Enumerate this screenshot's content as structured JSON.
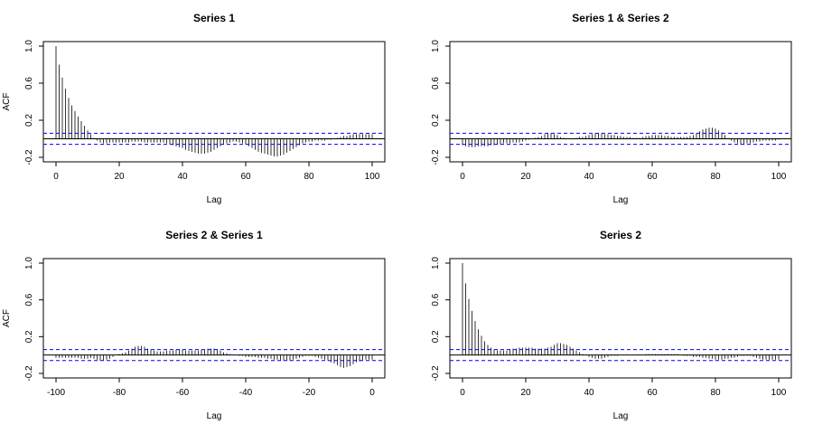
{
  "figure": {
    "title": ""
  },
  "chart_data": [
    {
      "type": "bar",
      "title": "Series 1",
      "xlabel": "Lag",
      "ylabel": "ACF",
      "xlim": [
        0,
        100
      ],
      "ylim": [
        -0.2,
        1.0
      ],
      "xticks": [
        0,
        20,
        40,
        60,
        80,
        100
      ],
      "xtick_labels": [
        "0",
        "20",
        "40",
        "60",
        "80",
        "100"
      ],
      "yticks": [
        -0.2,
        0.2,
        0.6,
        1.0
      ],
      "ytick_labels": [
        "-0.2",
        "0.2",
        "0.6",
        "1.0"
      ],
      "ci": 0.06,
      "lag_start": 0,
      "values": [
        1.0,
        0.8,
        0.66,
        0.54,
        0.44,
        0.36,
        0.3,
        0.24,
        0.19,
        0.14,
        0.09,
        0.05,
        0.01,
        -0.02,
        -0.04,
        -0.05,
        -0.05,
        -0.04,
        -0.04,
        -0.04,
        -0.04,
        -0.04,
        -0.04,
        -0.04,
        -0.03,
        -0.03,
        -0.03,
        -0.03,
        -0.04,
        -0.04,
        -0.04,
        -0.04,
        -0.04,
        -0.04,
        -0.04,
        -0.05,
        -0.06,
        -0.07,
        -0.08,
        -0.09,
        -0.1,
        -0.12,
        -0.13,
        -0.14,
        -0.15,
        -0.16,
        -0.16,
        -0.16,
        -0.15,
        -0.14,
        -0.12,
        -0.1,
        -0.08,
        -0.06,
        -0.05,
        -0.04,
        -0.03,
        -0.03,
        -0.04,
        -0.05,
        -0.06,
        -0.08,
        -0.1,
        -0.12,
        -0.14,
        -0.15,
        -0.16,
        -0.17,
        -0.18,
        -0.19,
        -0.19,
        -0.18,
        -0.17,
        -0.15,
        -0.13,
        -0.11,
        -0.09,
        -0.07,
        -0.05,
        -0.04,
        -0.03,
        -0.03,
        -0.02,
        -0.02,
        -0.02,
        -0.02,
        -0.01,
        -0.01,
        0.0,
        0.01,
        0.02,
        0.03,
        0.03,
        0.04,
        0.05,
        0.05,
        0.05,
        0.05,
        0.05,
        0.05,
        0.05
      ]
    },
    {
      "type": "bar",
      "title": "Series 1 & Series 2",
      "xlabel": "Lag",
      "ylabel": "",
      "xlim": [
        0,
        100
      ],
      "ylim": [
        -0.2,
        1.0
      ],
      "xticks": [
        0,
        20,
        40,
        60,
        80,
        100
      ],
      "xtick_labels": [
        "0",
        "20",
        "40",
        "60",
        "80",
        "100"
      ],
      "yticks": [
        -0.2,
        0.2,
        0.6,
        1.0
      ],
      "ytick_labels": [
        "-0.2",
        "0.2",
        "0.6",
        "1.0"
      ],
      "ci": 0.06,
      "lag_start": 0,
      "values": [
        -0.07,
        -0.08,
        -0.09,
        -0.09,
        -0.09,
        -0.08,
        -0.08,
        -0.08,
        -0.08,
        -0.07,
        -0.07,
        -0.06,
        -0.06,
        -0.05,
        -0.05,
        -0.05,
        -0.04,
        -0.04,
        -0.04,
        -0.03,
        -0.02,
        -0.01,
        0.0,
        0.01,
        0.02,
        0.03,
        0.05,
        0.06,
        0.06,
        0.05,
        0.04,
        0.02,
        0.01,
        0.0,
        0.0,
        0.0,
        0.01,
        0.02,
        0.02,
        0.03,
        0.04,
        0.05,
        0.06,
        0.06,
        0.06,
        0.05,
        0.05,
        0.04,
        0.04,
        0.03,
        0.03,
        0.02,
        0.02,
        0.02,
        0.01,
        0.01,
        0.01,
        0.02,
        0.03,
        0.03,
        0.04,
        0.04,
        0.04,
        0.04,
        0.03,
        0.03,
        0.02,
        0.02,
        0.02,
        0.02,
        0.02,
        0.02,
        0.03,
        0.04,
        0.06,
        0.08,
        0.1,
        0.11,
        0.12,
        0.12,
        0.11,
        0.09,
        0.07,
        0.04,
        0.01,
        -0.02,
        -0.04,
        -0.05,
        -0.06,
        -0.06,
        -0.05,
        -0.05,
        -0.04,
        -0.03,
        -0.03,
        -0.02,
        -0.02,
        -0.02,
        -0.02,
        -0.02,
        -0.01
      ]
    },
    {
      "type": "bar",
      "title": "Series 2 & Series 1",
      "xlabel": "Lag",
      "ylabel": "ACF",
      "xlim": [
        -100,
        0
      ],
      "ylim": [
        -0.2,
        1.0
      ],
      "xticks": [
        -100,
        -80,
        -60,
        -40,
        -20,
        0
      ],
      "xtick_labels": [
        "-100",
        "-80",
        "-60",
        "-40",
        "-20",
        "0"
      ],
      "yticks": [
        -0.2,
        0.2,
        0.6,
        1.0
      ],
      "ytick_labels": [
        "-0.2",
        "0.2",
        "0.6",
        "1.0"
      ],
      "ci": 0.06,
      "lag_start": -100,
      "values": [
        -0.03,
        -0.03,
        -0.03,
        -0.03,
        -0.03,
        -0.03,
        -0.03,
        -0.03,
        -0.04,
        -0.04,
        -0.04,
        -0.03,
        -0.04,
        -0.05,
        -0.06,
        -0.06,
        -0.05,
        -0.04,
        -0.02,
        0.0,
        0.01,
        0.02,
        0.03,
        0.05,
        0.07,
        0.09,
        0.1,
        0.1,
        0.09,
        0.07,
        0.06,
        0.05,
        0.04,
        0.04,
        0.04,
        0.05,
        0.05,
        0.05,
        0.06,
        0.06,
        0.06,
        0.05,
        0.05,
        0.05,
        0.05,
        0.05,
        0.06,
        0.06,
        0.07,
        0.07,
        0.07,
        0.06,
        0.05,
        0.03,
        0.02,
        0.01,
        0.0,
        0.0,
        -0.01,
        -0.01,
        -0.02,
        -0.02,
        -0.02,
        -0.02,
        -0.03,
        -0.03,
        -0.03,
        -0.04,
        -0.04,
        -0.05,
        -0.05,
        -0.06,
        -0.06,
        -0.06,
        -0.06,
        -0.05,
        -0.04,
        -0.03,
        -0.02,
        -0.01,
        -0.01,
        -0.01,
        -0.02,
        -0.03,
        -0.04,
        -0.05,
        -0.06,
        -0.08,
        -0.09,
        -0.11,
        -0.13,
        -0.14,
        -0.13,
        -0.12,
        -0.1,
        -0.08,
        -0.07,
        -0.06,
        -0.05,
        -0.05,
        -0.05
      ]
    },
    {
      "type": "bar",
      "title": "Series 2",
      "xlabel": "Lag",
      "ylabel": "",
      "xlim": [
        0,
        100
      ],
      "ylim": [
        -0.2,
        1.0
      ],
      "xticks": [
        0,
        20,
        40,
        60,
        80,
        100
      ],
      "xtick_labels": [
        "0",
        "20",
        "40",
        "60",
        "80",
        "100"
      ],
      "yticks": [
        -0.2,
        0.2,
        0.6,
        1.0
      ],
      "ytick_labels": [
        "-0.2",
        "0.2",
        "0.6",
        "1.0"
      ],
      "ci": 0.06,
      "lag_start": 0,
      "values": [
        1.0,
        0.78,
        0.61,
        0.48,
        0.37,
        0.28,
        0.21,
        0.15,
        0.11,
        0.08,
        0.06,
        0.05,
        0.05,
        0.05,
        0.05,
        0.06,
        0.07,
        0.07,
        0.08,
        0.08,
        0.08,
        0.08,
        0.08,
        0.07,
        0.07,
        0.07,
        0.07,
        0.08,
        0.09,
        0.11,
        0.13,
        0.13,
        0.12,
        0.11,
        0.09,
        0.07,
        0.05,
        0.03,
        0.01,
        0.0,
        -0.02,
        -0.03,
        -0.04,
        -0.04,
        -0.04,
        -0.03,
        -0.02,
        -0.01,
        -0.01,
        -0.01,
        0.0,
        0.0,
        0.0,
        0.0,
        0.0,
        0.0,
        0.0,
        0.0,
        0.01,
        0.01,
        0.01,
        0.01,
        0.01,
        0.01,
        0.01,
        0.01,
        0.01,
        0.01,
        0.01,
        0.0,
        -0.01,
        -0.01,
        -0.01,
        -0.02,
        -0.02,
        -0.02,
        -0.03,
        -0.03,
        -0.04,
        -0.04,
        -0.05,
        -0.05,
        -0.05,
        -0.04,
        -0.04,
        -0.03,
        -0.03,
        -0.02,
        -0.01,
        -0.01,
        -0.01,
        -0.01,
        -0.02,
        -0.03,
        -0.04,
        -0.05,
        -0.05,
        -0.05,
        -0.05,
        -0.05,
        -0.05
      ]
    }
  ]
}
